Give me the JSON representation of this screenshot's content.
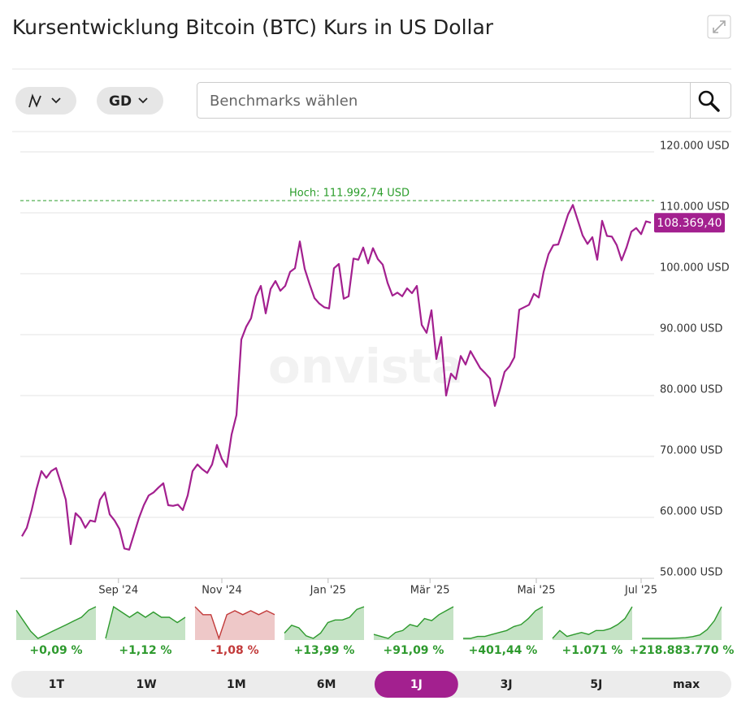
{
  "header": {
    "title": "Kursentwicklung Bitcoin (BTC) Kurs in US Dollar"
  },
  "controls": {
    "average_button": "GD",
    "search_placeholder": "Benchmarks wählen"
  },
  "chart_data": {
    "type": "line",
    "color": "#a3208f",
    "watermark": "onvista",
    "values": [
      56900,
      58300,
      61200,
      64700,
      67600,
      66500,
      67600,
      68100,
      65600,
      62900,
      55600,
      60700,
      59900,
      58300,
      59500,
      59300,
      62900,
      64100,
      60500,
      59500,
      58100,
      54900,
      54700,
      57300,
      59900,
      62000,
      63600,
      64100,
      64900,
      65600,
      62000,
      61900,
      62100,
      61200,
      63600,
      67600,
      68700,
      67900,
      67300,
      68700,
      71900,
      69600,
      68300,
      73600,
      76800,
      89200,
      91300,
      92700,
      96300,
      98000,
      93500,
      97500,
      98800,
      97200,
      98000,
      100300,
      100900,
      105300,
      100800,
      98300,
      96000,
      95100,
      94500,
      94300,
      100900,
      101600,
      95900,
      96300,
      102500,
      102300,
      104300,
      101700,
      104200,
      102400,
      101500,
      98500,
      96400,
      96900,
      96300,
      97600,
      96800,
      98000,
      91600,
      90300,
      94000,
      86000,
      89600,
      80000,
      83600,
      82700,
      86500,
      85100,
      87300,
      85900,
      84500,
      83700,
      82800,
      78300,
      80900,
      83900,
      84800,
      86300,
      94100,
      94500,
      94900,
      96700,
      96100,
      100300,
      103200,
      104700,
      104800,
      107200,
      109700,
      111300,
      108800,
      106300,
      104900,
      106000,
      102300,
      108700,
      106200,
      106100,
      104700,
      102200,
      104300,
      106900,
      107500,
      106500,
      108600,
      108369.4
    ],
    "last_value_label": "108.369,40",
    "high": {
      "value": 111992.74,
      "label": "Hoch: 111.992,74 USD",
      "color": "#2a9d2a"
    },
    "xlim": [
      0,
      129
    ],
    "xticks": [
      {
        "value": 19.8,
        "label": "Sep '24"
      },
      {
        "value": 41,
        "label": "Nov '24"
      },
      {
        "value": 62.8,
        "label": "Jan '25"
      },
      {
        "value": 83.7,
        "label": "Mär '25"
      },
      {
        "value": 105.5,
        "label": "Mai '25"
      },
      {
        "value": 127,
        "label": "Jul '25"
      }
    ],
    "ylim": [
      50000,
      120000
    ],
    "yticks": [
      {
        "value": 50000,
        "label": "50.000 USD"
      },
      {
        "value": 60000,
        "label": "60.000 USD"
      },
      {
        "value": 70000,
        "label": "70.000 USD"
      },
      {
        "value": 80000,
        "label": "80.000 USD"
      },
      {
        "value": 90000,
        "label": "90.000 USD"
      },
      {
        "value": 100000,
        "label": "100.000 USD"
      },
      {
        "value": 110000,
        "label": "110.000 USD"
      },
      {
        "value": 120000,
        "label": "120.000 USD"
      }
    ],
    "grid": true
  },
  "periods": [
    {
      "label": "1T",
      "change": "+0,09 %",
      "color": "#2e9a2e",
      "values": [
        70,
        55,
        40,
        30,
        35,
        40,
        45,
        50,
        55,
        60,
        70,
        75
      ]
    },
    {
      "label": "1W",
      "change": "+1,12 %",
      "color": "#2e9a2e",
      "values": [
        40,
        70,
        65,
        60,
        65,
        60,
        65,
        60,
        60,
        55,
        60
      ]
    },
    {
      "label": "1M",
      "change": "-1,08 %",
      "color": "#c23a3a",
      "values": [
        80,
        70,
        70,
        40,
        70,
        75,
        70,
        75,
        70,
        75,
        70
      ]
    },
    {
      "label": "6M",
      "change": "+13,99 %",
      "color": "#2e9a2e",
      "values": [
        30,
        45,
        40,
        25,
        20,
        30,
        50,
        55,
        55,
        60,
        75,
        80
      ]
    },
    {
      "label": "1J",
      "change": "+91,09 %",
      "color": "#2e9a2e",
      "values": [
        20,
        15,
        10,
        25,
        30,
        45,
        40,
        60,
        55,
        70,
        80,
        90
      ]
    },
    {
      "label": "3J",
      "change": "+401,44 %",
      "color": "#2e9a2e",
      "values": [
        5,
        5,
        10,
        10,
        15,
        20,
        25,
        35,
        40,
        55,
        75,
        85
      ]
    },
    {
      "label": "5J",
      "change": "+1.071 %",
      "color": "#2e9a2e",
      "values": [
        10,
        30,
        15,
        20,
        25,
        20,
        30,
        30,
        35,
        45,
        60,
        90
      ]
    },
    {
      "label": "max",
      "change": "+218.883.770 %",
      "color": "#2e9a2e",
      "values": [
        0,
        0,
        0,
        0,
        0,
        1,
        2,
        5,
        10,
        25,
        50,
        90
      ]
    }
  ],
  "active_period": 4
}
